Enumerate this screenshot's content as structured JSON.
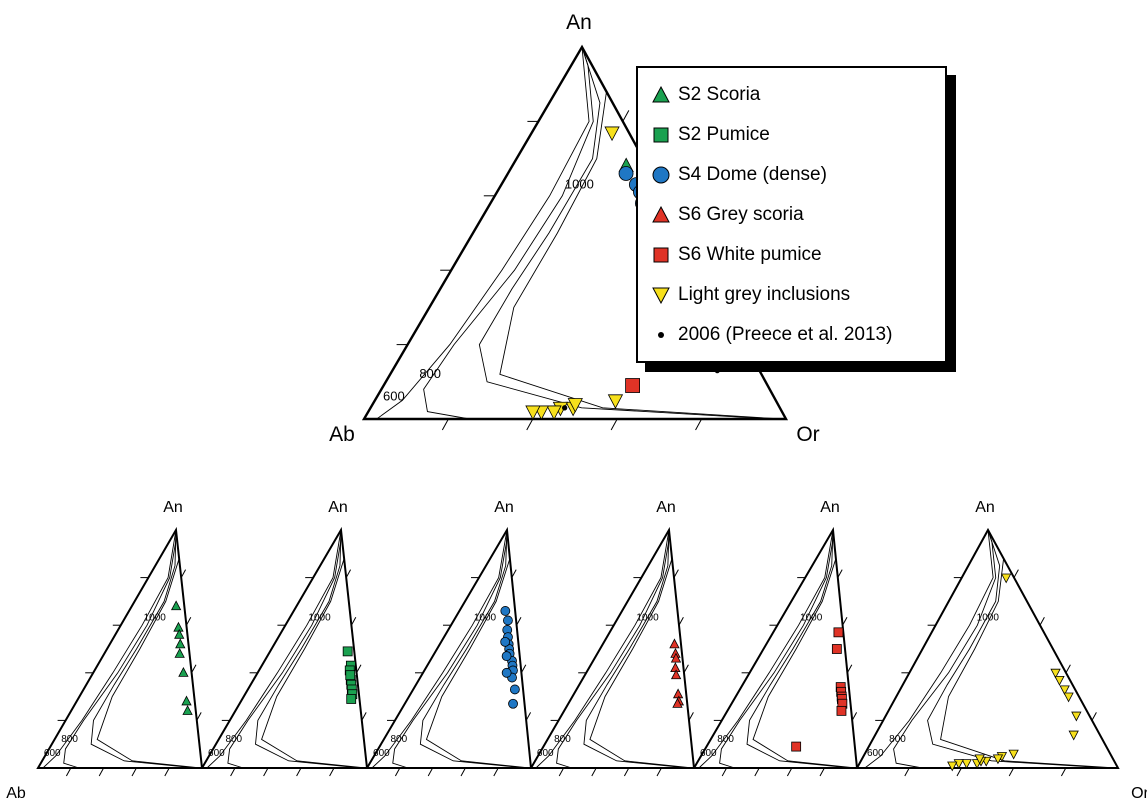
{
  "colors": {
    "s2_scoria": "#1aa150",
    "s2_pumice": "#1aa150",
    "s4_dome": "#1f77c4",
    "s6_grey_scoria": "#e03326",
    "s6_white_pumice": "#e03326",
    "light_grey_inclusions": "#f7e01c",
    "reference_2006": "#000000"
  },
  "legend": [
    {
      "label": "S2 Scoria",
      "marker": "triangle-up",
      "color": "#1aa150"
    },
    {
      "label": "S2 Pumice",
      "marker": "square",
      "color": "#1aa150"
    },
    {
      "label": "S4 Dome (dense)",
      "marker": "circle",
      "color": "#1f77c4"
    },
    {
      "label": "S6 Grey scoria",
      "marker": "triangle-up",
      "color": "#e03326"
    },
    {
      "label": "S6 White pumice",
      "marker": "square",
      "color": "#e03326"
    },
    {
      "label": "Light grey inclusions",
      "marker": "triangle-down",
      "color": "#f7e01c"
    },
    {
      "label": "2006 (Preece et al. 2013)",
      "marker": "dot",
      "color": "#000000"
    }
  ],
  "chart_data": [
    {
      "type": "scatter",
      "subtype": "ternary",
      "panel": "main",
      "vertex_labels": {
        "top": "An",
        "left": "Ab",
        "right": "Or"
      },
      "isotherm_labels": [
        "600",
        "800",
        "1000"
      ],
      "series": [
        {
          "name": "S2 Scoria",
          "marker": "triangle-up",
          "color": "#1aa150",
          "points": [
            [
              0.68,
              0.27
            ],
            [
              0.51,
              0.44
            ],
            [
              0.5,
              0.46
            ],
            [
              0.4,
              0.56
            ],
            [
              0.32,
              0.64
            ],
            [
              0.37,
              0.59
            ],
            [
              0.3,
              0.66
            ],
            [
              0.46,
              0.49
            ]
          ]
        },
        {
          "name": "S2 Pumice",
          "marker": "square",
          "color": "#1aa150",
          "points": [
            [
              0.49,
              0.48
            ],
            [
              0.37,
              0.6
            ],
            [
              0.33,
              0.63
            ],
            [
              0.31,
              0.65
            ],
            [
              0.3,
              0.67
            ],
            [
              0.28,
              0.68
            ],
            [
              0.42,
              0.55
            ]
          ]
        },
        {
          "name": "S4 Dome (dense)",
          "marker": "circle",
          "color": "#1f77c4",
          "points": [
            [
              0.66,
              0.28
            ],
            [
              0.63,
              0.32
            ],
            [
              0.61,
              0.34
            ],
            [
              0.58,
              0.36
            ],
            [
              0.55,
              0.38
            ],
            [
              0.53,
              0.41
            ],
            [
              0.5,
              0.43
            ],
            [
              0.48,
              0.45
            ],
            [
              0.45,
              0.49
            ],
            [
              0.43,
              0.51
            ],
            [
              0.41,
              0.53
            ],
            [
              0.33,
              0.61
            ]
          ]
        },
        {
          "name": "S6 Grey scoria",
          "marker": "triangle-up",
          "color": "#e03326",
          "points": [
            [
              0.51,
              0.45
            ],
            [
              0.46,
              0.51
            ],
            [
              0.44,
              0.52
            ],
            [
              0.37,
              0.59
            ],
            [
              0.31,
              0.65
            ],
            [
              0.29,
              0.68
            ]
          ]
        },
        {
          "name": "S6 White pumice",
          "marker": "square",
          "color": "#e03326",
          "points": [
            [
              0.58,
              0.39
            ],
            [
              0.54,
              0.43
            ],
            [
              0.5,
              0.47
            ],
            [
              0.48,
              0.49
            ],
            [
              0.4,
              0.58
            ],
            [
              0.36,
              0.61
            ],
            [
              0.34,
              0.63
            ],
            [
              0.32,
              0.65
            ],
            [
              0.3,
              0.67
            ],
            [
              0.28,
              0.69
            ],
            [
              0.09,
              0.59
            ]
          ]
        },
        {
          "name": "Light grey inclusions",
          "marker": "triangle-down",
          "color": "#f7e01c",
          "points": [
            [
              0.77,
              0.19
            ],
            [
              0.29,
              0.65
            ],
            [
              0.46,
              0.5
            ],
            [
              0.22,
              0.71
            ],
            [
              0.23,
              0.7
            ],
            [
              0.17,
              0.75
            ],
            [
              0.05,
              0.57
            ],
            [
              0.03,
              0.48
            ],
            [
              0.04,
              0.48
            ],
            [
              0.03,
              0.45
            ],
            [
              0.02,
              0.44
            ],
            [
              0.02,
              0.41
            ],
            [
              0.02,
              0.39
            ]
          ]
        },
        {
          "name": "2006 (Preece et al. 2013)",
          "marker": "dot",
          "color": "#000000",
          "points": [
            [
              0.46,
              0.5
            ],
            [
              0.43,
              0.52
            ],
            [
              0.42,
              0.53
            ],
            [
              0.4,
              0.55
            ],
            [
              0.38,
              0.58
            ],
            [
              0.36,
              0.59
            ],
            [
              0.34,
              0.6
            ],
            [
              0.33,
              0.63
            ],
            [
              0.31,
              0.63
            ],
            [
              0.29,
              0.64
            ],
            [
              0.27,
              0.66
            ],
            [
              0.25,
              0.67
            ],
            [
              0.22,
              0.69
            ],
            [
              0.2,
              0.71
            ],
            [
              0.17,
              0.74
            ],
            [
              0.15,
              0.75
            ],
            [
              0.13,
              0.77
            ],
            [
              0.03,
              0.46
            ]
          ]
        }
      ]
    },
    {
      "type": "scatter",
      "subtype": "ternary",
      "panel": "small-1",
      "vertex_labels": {
        "top": "An",
        "left": "Ab",
        "right": ""
      },
      "isotherm_labels": [
        "600",
        "800",
        "1000"
      ],
      "series": [
        {
          "name": "S2 Scoria",
          "marker": "triangle-up",
          "color": "#1aa150",
          "points": [
            [
              0.68,
              0.27
            ],
            [
              0.59,
              0.36
            ],
            [
              0.52,
              0.43
            ],
            [
              0.48,
              0.46
            ],
            [
              0.4,
              0.55
            ],
            [
              0.28,
              0.67
            ],
            [
              0.24,
              0.71
            ],
            [
              0.56,
              0.39
            ]
          ]
        }
      ]
    },
    {
      "type": "scatter",
      "subtype": "ternary",
      "panel": "small-2",
      "vertex_labels": {
        "top": "An",
        "left": "",
        "right": ""
      },
      "isotherm_labels": [
        "600",
        "800",
        "1000"
      ],
      "series": [
        {
          "name": "S2 Pumice",
          "marker": "square",
          "color": "#1aa150",
          "points": [
            [
              0.49,
              0.47
            ],
            [
              0.43,
              0.54
            ],
            [
              0.41,
              0.55
            ],
            [
              0.37,
              0.59
            ],
            [
              0.35,
              0.61
            ],
            [
              0.33,
              0.63
            ],
            [
              0.31,
              0.65
            ],
            [
              0.29,
              0.66
            ],
            [
              0.39,
              0.57
            ]
          ]
        }
      ]
    },
    {
      "type": "scatter",
      "subtype": "ternary",
      "panel": "small-3",
      "vertex_labels": {
        "top": "An",
        "left": "",
        "right": ""
      },
      "isotherm_labels": [
        "600",
        "800",
        "1000"
      ],
      "series": [
        {
          "name": "S4 Dome (dense)",
          "marker": "circle",
          "color": "#1f77c4",
          "points": [
            [
              0.66,
              0.28
            ],
            [
              0.62,
              0.33
            ],
            [
              0.58,
              0.36
            ],
            [
              0.55,
              0.39
            ],
            [
              0.52,
              0.42
            ],
            [
              0.5,
              0.44
            ],
            [
              0.48,
              0.46
            ],
            [
              0.45,
              0.5
            ],
            [
              0.43,
              0.52
            ],
            [
              0.41,
              0.54
            ],
            [
              0.38,
              0.56
            ],
            [
              0.33,
              0.62
            ],
            [
              0.4,
              0.51
            ],
            [
              0.47,
              0.45
            ],
            [
              0.53,
              0.39
            ],
            [
              0.27,
              0.66
            ]
          ]
        }
      ]
    },
    {
      "type": "scatter",
      "subtype": "ternary",
      "panel": "small-4",
      "vertex_labels": {
        "top": "An",
        "left": "",
        "right": ""
      },
      "isotherm_labels": [
        "600",
        "800",
        "1000"
      ],
      "series": [
        {
          "name": "S6 Grey scoria",
          "marker": "triangle-up",
          "color": "#e03326",
          "points": [
            [
              0.52,
              0.44
            ],
            [
              0.48,
              0.48
            ],
            [
              0.46,
              0.5
            ],
            [
              0.42,
              0.53
            ],
            [
              0.39,
              0.56
            ],
            [
              0.31,
              0.64
            ],
            [
              0.28,
              0.67
            ],
            [
              0.27,
              0.67
            ]
          ]
        }
      ]
    },
    {
      "type": "scatter",
      "subtype": "ternary",
      "panel": "small-5",
      "vertex_labels": {
        "top": "An",
        "left": "",
        "right": ""
      },
      "isotherm_labels": [
        "600",
        "800",
        "1000"
      ],
      "series": [
        {
          "name": "S6 White pumice",
          "marker": "square",
          "color": "#e03326",
          "points": [
            [
              0.57,
              0.4
            ],
            [
              0.5,
              0.45
            ],
            [
              0.34,
              0.61
            ],
            [
              0.32,
              0.63
            ],
            [
              0.3,
              0.65
            ],
            [
              0.29,
              0.66
            ],
            [
              0.27,
              0.68
            ],
            [
              0.24,
              0.7
            ],
            [
              0.09,
              0.55
            ]
          ]
        }
      ]
    },
    {
      "type": "scatter",
      "subtype": "ternary",
      "panel": "small-6",
      "vertex_labels": {
        "top": "An",
        "left": "",
        "right": "Or"
      },
      "isotherm_labels": [
        "600",
        "800",
        "1000"
      ],
      "series": [
        {
          "name": "Light grey inclusions",
          "marker": "triangle-down",
          "color": "#f7e01c",
          "points": [
            [
              0.8,
              0.17
            ],
            [
              0.4,
              0.56
            ],
            [
              0.37,
              0.59
            ],
            [
              0.33,
              0.63
            ],
            [
              0.3,
              0.66
            ],
            [
              0.22,
              0.73
            ],
            [
              0.14,
              0.76
            ],
            [
              0.06,
              0.57
            ],
            [
              0.05,
              0.53
            ],
            [
              0.04,
              0.52
            ],
            [
              0.03,
              0.48
            ],
            [
              0.03,
              0.46
            ],
            [
              0.02,
              0.45
            ],
            [
              0.02,
              0.41
            ],
            [
              0.02,
              0.38
            ],
            [
              0.01,
              0.36
            ],
            [
              0.04,
              0.45
            ]
          ]
        }
      ]
    }
  ]
}
